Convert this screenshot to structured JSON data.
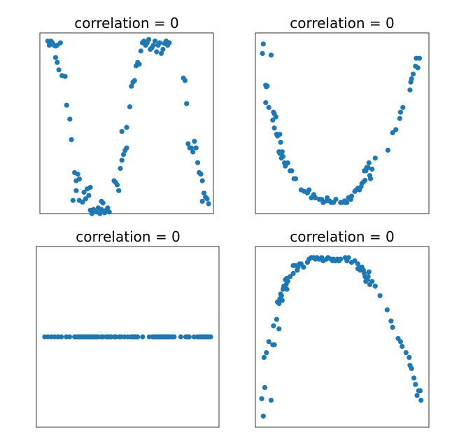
{
  "marker_color": "#1f77b4",
  "chart_data": [
    {
      "type": "scatter",
      "title": "correlation = 0",
      "xlabel": "",
      "ylabel": "",
      "xlim": [
        -0.05,
        1.05
      ],
      "ylim": [
        -1.1,
        1.1
      ],
      "grid": false,
      "points": [
        [
          0.0,
          1.0
        ],
        [
          0.01,
          0.95
        ],
        [
          0.02,
          1.0
        ],
        [
          0.03,
          0.98
        ],
        [
          0.04,
          0.95
        ],
        [
          0.05,
          0.94
        ],
        [
          0.06,
          0.95
        ],
        [
          0.08,
          0.98
        ],
        [
          0.05,
          0.8
        ],
        [
          0.06,
          0.74
        ],
        [
          0.07,
          0.65
        ],
        [
          0.09,
          0.58
        ],
        [
          0.11,
          0.57
        ],
        [
          0.12,
          0.22
        ],
        [
          0.14,
          0.05
        ],
        [
          0.15,
          -0.2
        ],
        [
          0.17,
          -0.6
        ],
        [
          0.18,
          -0.7
        ],
        [
          0.19,
          -0.62
        ],
        [
          0.2,
          -0.68
        ],
        [
          0.18,
          -0.82
        ],
        [
          0.2,
          -0.94
        ],
        [
          0.22,
          -0.96
        ],
        [
          0.23,
          -0.84
        ],
        [
          0.25,
          -0.8
        ],
        [
          0.24,
          -0.92
        ],
        [
          0.26,
          -0.88
        ],
        [
          0.27,
          -0.78
        ],
        [
          0.16,
          -0.94
        ],
        [
          0.27,
          -1.06
        ],
        [
          0.28,
          -1.1
        ],
        [
          0.29,
          -1.05
        ],
        [
          0.31,
          -1.08
        ],
        [
          0.32,
          -1.03
        ],
        [
          0.33,
          -1.1
        ],
        [
          0.34,
          -1.05
        ],
        [
          0.35,
          -0.97
        ],
        [
          0.36,
          -1.09
        ],
        [
          0.37,
          -1.06
        ],
        [
          0.34,
          -0.95
        ],
        [
          0.38,
          -1.03
        ],
        [
          0.39,
          -1.08
        ],
        [
          0.42,
          -0.7
        ],
        [
          0.43,
          -0.72
        ],
        [
          0.44,
          -0.75
        ],
        [
          0.45,
          -0.82
        ],
        [
          0.46,
          -0.55
        ],
        [
          0.47,
          -0.45
        ],
        [
          0.48,
          -0.38
        ],
        [
          0.49,
          -0.33
        ],
        [
          0.5,
          -0.3
        ],
        [
          0.47,
          -0.1
        ],
        [
          0.5,
          -0.05
        ],
        [
          0.52,
          0.2
        ],
        [
          0.53,
          0.45
        ],
        [
          0.54,
          0.5
        ],
        [
          0.55,
          0.52
        ],
        [
          0.56,
          0.7
        ],
        [
          0.57,
          0.74
        ],
        [
          0.58,
          0.72
        ],
        [
          0.59,
          0.88
        ],
        [
          0.6,
          0.98
        ],
        [
          0.61,
          1.0
        ],
        [
          0.62,
          0.95
        ],
        [
          0.63,
          0.98
        ],
        [
          0.64,
          1.02
        ],
        [
          0.65,
          0.9
        ],
        [
          0.66,
          0.92
        ],
        [
          0.67,
          0.95
        ],
        [
          0.68,
          1.0
        ],
        [
          0.69,
          0.87
        ],
        [
          0.7,
          0.95
        ],
        [
          0.71,
          0.98
        ],
        [
          0.72,
          0.85
        ],
        [
          0.73,
          0.9
        ],
        [
          0.74,
          0.97
        ],
        [
          0.75,
          1.0
        ],
        [
          0.76,
          0.95
        ],
        [
          0.77,
          0.98
        ],
        [
          0.86,
          0.55
        ],
        [
          0.87,
          0.52
        ],
        [
          0.88,
          0.24
        ],
        [
          0.89,
          -0.25
        ],
        [
          0.9,
          -0.3
        ],
        [
          0.91,
          -0.3
        ],
        [
          0.92,
          -0.35
        ],
        [
          0.93,
          -0.22
        ],
        [
          0.94,
          -0.3
        ],
        [
          0.95,
          -0.48
        ],
        [
          0.96,
          -0.6
        ],
        [
          0.97,
          -0.62
        ],
        [
          0.98,
          -0.7
        ],
        [
          0.99,
          -0.85
        ],
        [
          1.0,
          -0.9
        ],
        [
          0.98,
          -0.95
        ],
        [
          1.01,
          -0.92
        ],
        [
          1.02,
          -0.98
        ]
      ]
    },
    {
      "type": "scatter",
      "title": "correlation = 0",
      "xlabel": "",
      "ylabel": "",
      "xlim": [
        -1.1,
        1.1
      ],
      "ylim": [
        -0.07,
        1.07
      ],
      "grid": false,
      "points": [
        [
          -1.0,
          1.0
        ],
        [
          -1.01,
          0.94
        ],
        [
          -0.9,
          0.93
        ],
        [
          -0.97,
          0.74
        ],
        [
          -0.96,
          0.73
        ],
        [
          -0.95,
          0.735
        ],
        [
          -0.97,
          0.63
        ],
        [
          -0.93,
          0.6
        ],
        [
          -0.87,
          0.57
        ],
        [
          -0.86,
          0.56
        ],
        [
          -0.84,
          0.54
        ],
        [
          -0.88,
          0.52
        ],
        [
          -0.86,
          0.47
        ],
        [
          -0.83,
          0.43
        ],
        [
          -0.82,
          0.42
        ],
        [
          -0.79,
          0.43
        ],
        [
          -0.78,
          0.38
        ],
        [
          -0.8,
          0.32
        ],
        [
          -0.79,
          0.31
        ],
        [
          -0.76,
          0.32
        ],
        [
          -0.77,
          0.28
        ],
        [
          -0.75,
          0.29
        ],
        [
          -0.73,
          0.25
        ],
        [
          -0.72,
          0.23
        ],
        [
          -0.69,
          0.25
        ],
        [
          -0.66,
          0.2
        ],
        [
          -0.64,
          0.2
        ],
        [
          -0.61,
          0.15
        ],
        [
          -0.59,
          0.15
        ],
        [
          -0.52,
          0.08
        ],
        [
          -0.48,
          0.07
        ],
        [
          -0.44,
          0.06
        ],
        [
          -0.42,
          0.08
        ],
        [
          -0.39,
          0.03
        ],
        [
          -0.36,
          0.05
        ],
        [
          -0.34,
          0.03
        ],
        [
          -0.29,
          0.02
        ],
        [
          -0.26,
          0.02
        ],
        [
          -0.24,
          0.0
        ],
        [
          -0.2,
          0.01
        ],
        [
          -0.19,
          0.03
        ],
        [
          -0.16,
          0.01
        ],
        [
          -0.14,
          0.0
        ],
        [
          -0.11,
          0.0
        ],
        [
          -0.08,
          0.02
        ],
        [
          -0.02,
          0.0
        ],
        [
          0.0,
          0.0
        ],
        [
          0.03,
          0.01
        ],
        [
          0.04,
          0.0
        ],
        [
          0.06,
          0.0
        ],
        [
          0.08,
          0.03
        ],
        [
          0.11,
          0.02
        ],
        [
          0.12,
          0.04
        ],
        [
          0.16,
          0.07
        ],
        [
          0.18,
          0.08
        ],
        [
          0.2,
          0.09
        ],
        [
          0.22,
          0.08
        ],
        [
          0.24,
          0.1
        ],
        [
          0.25,
          0.12
        ],
        [
          0.27,
          0.13
        ],
        [
          0.29,
          0.14
        ],
        [
          0.28,
          0.2
        ],
        [
          0.3,
          0.2
        ],
        [
          0.31,
          0.22
        ],
        [
          0.33,
          0.22
        ],
        [
          0.35,
          0.17
        ],
        [
          0.36,
          0.15
        ],
        [
          0.34,
          0.25
        ],
        [
          0.38,
          0.21
        ],
        [
          0.42,
          0.28
        ],
        [
          0.58,
          0.33
        ],
        [
          0.64,
          0.44
        ],
        [
          0.68,
          0.46
        ],
        [
          0.73,
          0.53
        ],
        [
          0.74,
          0.57
        ],
        [
          0.77,
          0.6
        ],
        [
          0.86,
          0.71
        ],
        [
          0.87,
          0.76
        ],
        [
          0.88,
          0.78
        ],
        [
          0.9,
          0.81
        ],
        [
          0.93,
          0.86
        ],
        [
          0.94,
          0.91
        ],
        [
          0.96,
          0.85
        ],
        [
          0.98,
          0.91
        ]
      ]
    },
    {
      "type": "scatter",
      "title": "correlation = 0",
      "xlabel": "",
      "ylabel": "",
      "xlim": [
        -0.05,
        1.05
      ],
      "ylim": [
        -1.0,
        1.0
      ],
      "grid": false,
      "points": [
        [
          0.0,
          0
        ],
        [
          0.02,
          0
        ],
        [
          0.04,
          0
        ],
        [
          0.06,
          0
        ],
        [
          0.08,
          0
        ],
        [
          0.1,
          0
        ],
        [
          0.13,
          0
        ],
        [
          0.15,
          0
        ],
        [
          0.18,
          0
        ],
        [
          0.19,
          0
        ],
        [
          0.2,
          0
        ],
        [
          0.21,
          0
        ],
        [
          0.22,
          0
        ],
        [
          0.23,
          0
        ],
        [
          0.24,
          0
        ],
        [
          0.25,
          0
        ],
        [
          0.26,
          0
        ],
        [
          0.27,
          0
        ],
        [
          0.28,
          0
        ],
        [
          0.29,
          0
        ],
        [
          0.3,
          0
        ],
        [
          0.31,
          0
        ],
        [
          0.32,
          0
        ],
        [
          0.34,
          0
        ],
        [
          0.35,
          0
        ],
        [
          0.37,
          0
        ],
        [
          0.38,
          0
        ],
        [
          0.39,
          0
        ],
        [
          0.4,
          0
        ],
        [
          0.42,
          0
        ],
        [
          0.43,
          0
        ],
        [
          0.45,
          0
        ],
        [
          0.46,
          0
        ],
        [
          0.48,
          0
        ],
        [
          0.5,
          0
        ],
        [
          0.52,
          0
        ],
        [
          0.53,
          0
        ],
        [
          0.54,
          0
        ],
        [
          0.55,
          0
        ],
        [
          0.56,
          0
        ],
        [
          0.59,
          0
        ],
        [
          0.63,
          0
        ],
        [
          0.65,
          0
        ],
        [
          0.66,
          0
        ],
        [
          0.67,
          0
        ],
        [
          0.68,
          0
        ],
        [
          0.69,
          0
        ],
        [
          0.7,
          0
        ],
        [
          0.71,
          0
        ],
        [
          0.72,
          0
        ],
        [
          0.73,
          0
        ],
        [
          0.74,
          0
        ],
        [
          0.75,
          0
        ],
        [
          0.76,
          0
        ],
        [
          0.77,
          0
        ],
        [
          0.78,
          0
        ],
        [
          0.82,
          0
        ],
        [
          0.85,
          0
        ],
        [
          0.86,
          0
        ],
        [
          0.87,
          0
        ],
        [
          0.9,
          0
        ],
        [
          0.92,
          0
        ],
        [
          0.93,
          0
        ],
        [
          0.94,
          0
        ],
        [
          0.95,
          0
        ],
        [
          0.96,
          0
        ],
        [
          0.97,
          0
        ],
        [
          0.98,
          0
        ],
        [
          0.99,
          0
        ],
        [
          1.0,
          0
        ]
      ]
    },
    {
      "type": "scatter",
      "title": "correlation = 0",
      "xlabel": "",
      "ylabel": "",
      "xlim": [
        -1.1,
        1.1
      ],
      "ylim": [
        -1.07,
        0.07
      ],
      "grid": false,
      "points": [
        [
          -1.0,
          -1.0
        ],
        [
          -1.02,
          -0.89
        ],
        [
          -0.98,
          -0.82
        ],
        [
          -0.99,
          -0.63
        ],
        [
          -0.96,
          -0.6
        ],
        [
          -0.9,
          -0.9
        ],
        [
          -0.93,
          -0.53
        ],
        [
          -0.88,
          -0.55
        ],
        [
          -0.86,
          -0.55
        ],
        [
          -0.87,
          -0.43
        ],
        [
          -0.8,
          -0.45
        ],
        [
          -0.83,
          -0.39
        ],
        [
          -0.82,
          -0.28
        ],
        [
          -0.8,
          -0.29
        ],
        [
          -0.79,
          -0.26
        ],
        [
          -0.77,
          -0.24
        ],
        [
          -0.76,
          -0.27
        ],
        [
          -0.78,
          -0.23
        ],
        [
          -0.75,
          -0.2
        ],
        [
          -0.74,
          -0.18
        ],
        [
          -0.71,
          -0.17
        ],
        [
          -0.7,
          -0.2
        ],
        [
          -0.72,
          -0.14
        ],
        [
          -0.7,
          -0.13
        ],
        [
          -0.69,
          -0.15
        ],
        [
          -0.66,
          -0.12
        ],
        [
          -0.62,
          -0.1
        ],
        [
          -0.62,
          -0.05
        ],
        [
          -0.59,
          -0.05
        ],
        [
          -0.57,
          -0.08
        ],
        [
          -0.56,
          -0.06
        ],
        [
          -0.54,
          -0.04
        ],
        [
          -0.52,
          -0.04
        ],
        [
          -0.49,
          -0.06
        ],
        [
          -0.44,
          -0.03
        ],
        [
          -0.42,
          -0.01
        ],
        [
          -0.39,
          0.0
        ],
        [
          -0.36,
          0.0
        ],
        [
          -0.34,
          -0.01
        ],
        [
          -0.32,
          0.0
        ],
        [
          -0.29,
          -0.01
        ],
        [
          -0.26,
          0.0
        ],
        [
          -0.24,
          -0.02
        ],
        [
          -0.2,
          -0.01
        ],
        [
          -0.18,
          0.0
        ],
        [
          -0.14,
          -0.01
        ],
        [
          -0.12,
          -0.02
        ],
        [
          -0.11,
          -0.01
        ],
        [
          -0.09,
          -0.02
        ],
        [
          -0.06,
          -0.01
        ],
        [
          -0.04,
          -0.02
        ],
        [
          -0.02,
          -0.01
        ],
        [
          0.04,
          0.0
        ],
        [
          0.06,
          -0.02
        ],
        [
          0.08,
          0.0
        ],
        [
          0.12,
          -0.03
        ],
        [
          0.16,
          -0.02
        ],
        [
          0.2,
          -0.04
        ],
        [
          0.2,
          -0.07
        ],
        [
          0.22,
          -0.07
        ],
        [
          0.23,
          -0.08
        ],
        [
          0.25,
          -0.06
        ],
        [
          0.27,
          -0.08
        ],
        [
          0.28,
          -0.1
        ],
        [
          0.29,
          -0.12
        ],
        [
          0.3,
          -0.15
        ],
        [
          0.31,
          -0.13
        ],
        [
          0.32,
          -0.14
        ],
        [
          0.33,
          -0.12
        ],
        [
          0.34,
          -0.09
        ],
        [
          0.35,
          -0.17
        ],
        [
          0.38,
          -0.15
        ],
        [
          0.42,
          -0.18
        ],
        [
          0.48,
          -0.24
        ],
        [
          0.57,
          -0.33
        ],
        [
          0.62,
          -0.4
        ],
        [
          0.64,
          -0.44
        ],
        [
          0.71,
          -0.51
        ],
        [
          0.74,
          -0.53
        ],
        [
          0.76,
          -0.56
        ],
        [
          0.81,
          -0.6
        ],
        [
          0.85,
          -0.63
        ],
        [
          0.86,
          -0.68
        ],
        [
          0.88,
          -0.7
        ],
        [
          0.91,
          -0.76
        ],
        [
          0.93,
          -0.8
        ],
        [
          0.95,
          -0.87
        ],
        [
          0.97,
          -0.84
        ],
        [
          0.99,
          -0.84
        ],
        [
          1.0,
          -0.9
        ]
      ]
    }
  ]
}
